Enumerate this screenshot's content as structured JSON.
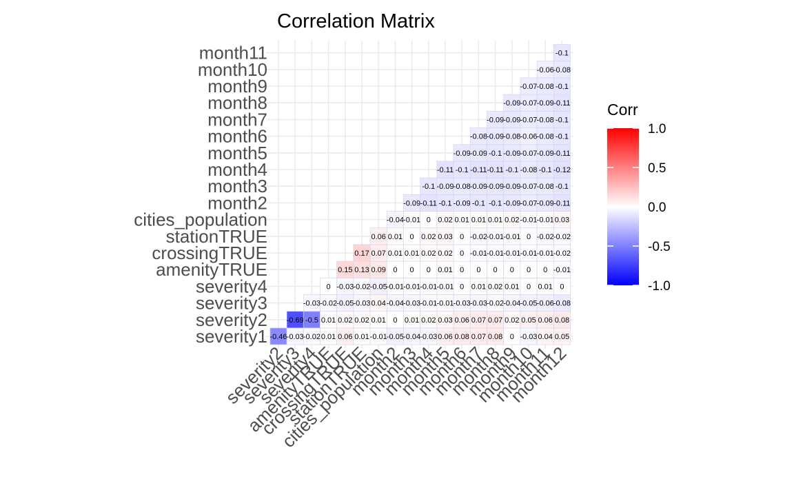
{
  "chart_data": {
    "type": "heatmap",
    "title": "Correlation Matrix",
    "variables": [
      "severity1",
      "severity2",
      "severity3",
      "severity4",
      "amenityTRUE",
      "crossingTRUE",
      "stationTRUE",
      "cities_population",
      "month2",
      "month3",
      "month4",
      "month5",
      "month6",
      "month7",
      "month8",
      "month9",
      "month10",
      "month11",
      "month12"
    ],
    "rows": [
      {
        "name": "severity1",
        "values": [
          -0.46,
          -0.03,
          -0.02,
          0.01,
          0.06,
          0.01,
          -0.01,
          -0.05,
          -0.04,
          -0.03,
          0.06,
          0.08,
          0.07,
          0.08,
          0,
          -0.03,
          0.04,
          0.05
        ]
      },
      {
        "name": "severity2",
        "values": [
          -0.69,
          -0.5,
          0.01,
          0.02,
          0.02,
          0.01,
          0,
          0.01,
          0.02,
          0.03,
          0.06,
          0.07,
          0.07,
          0.02,
          0.05,
          0.06,
          0.08
        ]
      },
      {
        "name": "severity3",
        "values": [
          -0.03,
          -0.02,
          -0.05,
          -0.03,
          0.04,
          -0.04,
          -0.03,
          -0.01,
          -0.01,
          -0.03,
          -0.03,
          -0.02,
          -0.04,
          -0.05,
          -0.06,
          -0.08
        ]
      },
      {
        "name": "severity4",
        "values": [
          0,
          -0.03,
          -0.02,
          -0.05,
          -0.01,
          -0.01,
          -0.01,
          -0.01,
          0,
          0.01,
          0.02,
          0.01,
          0,
          0.01,
          0
        ]
      },
      {
        "name": "amenityTRUE",
        "values": [
          0.15,
          0.13,
          0.09,
          0,
          0,
          0,
          0.01,
          0,
          0,
          0,
          0,
          0,
          0,
          -0.01
        ]
      },
      {
        "name": "crossingTRUE",
        "values": [
          0.17,
          0.07,
          0.01,
          0.01,
          0.02,
          0.02,
          0,
          -0.01,
          -0.01,
          -0.01,
          -0.01,
          -0.01,
          -0.02
        ]
      },
      {
        "name": "stationTRUE",
        "values": [
          0.06,
          0.01,
          0,
          0.02,
          0.03,
          0,
          -0.02,
          -0.01,
          -0.01,
          0,
          -0.02,
          -0.02
        ]
      },
      {
        "name": "cities_population",
        "values": [
          -0.04,
          -0.01,
          0,
          0.02,
          0.01,
          0.01,
          0.01,
          0.02,
          -0.01,
          -0.01,
          0.03
        ]
      },
      {
        "name": "month2",
        "values": [
          -0.09,
          -0.11,
          -0.1,
          -0.09,
          -0.1,
          -0.1,
          -0.09,
          -0.07,
          -0.09,
          -0.11
        ]
      },
      {
        "name": "month3",
        "values": [
          -0.1,
          -0.09,
          -0.08,
          -0.09,
          -0.09,
          -0.09,
          -0.07,
          -0.08,
          -0.1
        ]
      },
      {
        "name": "month4",
        "values": [
          -0.11,
          -0.1,
          -0.11,
          -0.11,
          -0.1,
          -0.08,
          -0.1,
          -0.12
        ]
      },
      {
        "name": "month5",
        "values": [
          -0.09,
          -0.09,
          -0.1,
          -0.09,
          -0.07,
          -0.09,
          -0.11
        ]
      },
      {
        "name": "month6",
        "values": [
          -0.08,
          -0.09,
          -0.08,
          -0.06,
          -0.08,
          -0.1
        ]
      },
      {
        "name": "month7",
        "values": [
          -0.09,
          -0.09,
          -0.07,
          -0.08,
          -0.1
        ]
      },
      {
        "name": "month8",
        "values": [
          -0.09,
          -0.07,
          -0.09,
          -0.11
        ]
      },
      {
        "name": "month9",
        "values": [
          -0.07,
          -0.08,
          -0.1
        ]
      },
      {
        "name": "month10",
        "values": [
          -0.06,
          -0.08
        ]
      },
      {
        "name": "month11",
        "values": [
          -0.1
        ]
      }
    ],
    "legend": {
      "title": "Corr",
      "range": [
        -1,
        1
      ],
      "ticks": [
        "1.0",
        "0.5",
        "0.0",
        "-0.5",
        "-1.0"
      ],
      "colors": {
        "low": "#0000ff",
        "mid": "#ffffff",
        "high": "#ff0000"
      },
      "placement": "right"
    },
    "grid": true
  }
}
